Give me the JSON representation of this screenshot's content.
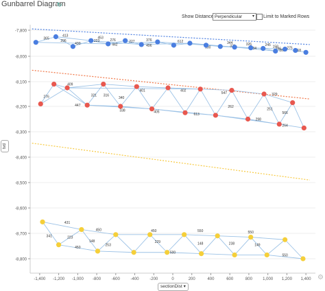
{
  "header": {
    "title": "Gunbarrel Diagram",
    "title_icon": "refresh-icon",
    "show_distances_label": "Show Distances",
    "distance_mode": "Perpendicular",
    "limit_label": "Limit to Marked Rows"
  },
  "axes_buttons": {
    "y": "tvd",
    "x": "sectionDist"
  },
  "chart_data": {
    "type": "scatter",
    "xlabel": "sectionDist",
    "ylabel": "tvd",
    "xlim": [
      -1500,
      1500
    ],
    "ylim": [
      -9850,
      -7750
    ],
    "grid": "horizontal",
    "xticks": [
      -1400,
      -1200,
      -1000,
      -800,
      -600,
      -400,
      -200,
      0,
      200,
      400,
      600,
      800,
      1000,
      1200,
      1400
    ],
    "xtick_labels": [
      "-1,400",
      "-1,200",
      "-1,000",
      "-800",
      "-600",
      "-400",
      "-200",
      "0",
      "200",
      "400",
      "600",
      "800",
      "1,000",
      "1,200",
      "1,400"
    ],
    "yticks": [
      -7800,
      -8000,
      -8100,
      -8200,
      -8300,
      -8400,
      -8500,
      -8600,
      -8700,
      -8800
    ],
    "ytick_labels": [
      "-7,800",
      "-8,000",
      "-8,100",
      "-8,200",
      "-8,300",
      "-8,400",
      "-8,500",
      "-8,600",
      "-8,700",
      "-8,800"
    ],
    "colors": {
      "blue": "#4a7ee0",
      "red": "#e8584f",
      "yellow": "#f5cf3a",
      "line": "#9cc2e6",
      "trend_blue": "#4a7ee0",
      "trend_red": "#f07545",
      "trend_yellow": "#f7c93f"
    },
    "trend_lines": [
      {
        "color": "blue",
        "x": [
          -1480,
          1440
        ],
        "y": [
          -7795,
          -7910
        ]
      },
      {
        "color": "red",
        "x": [
          -1480,
          1440
        ],
        "y": [
          -8055,
          -8170
        ]
      },
      {
        "color": "yellow",
        "x": [
          -1480,
          1440
        ],
        "y": [
          -8345,
          -8490
        ]
      }
    ],
    "series": [
      {
        "color": "blue",
        "x": [
          -1440,
          -1230,
          -1050,
          -860,
          -680,
          -500,
          -330,
          -160,
          10,
          180,
          350,
          500,
          650,
          820,
          950,
          1080,
          1180,
          1290,
          1400
        ],
        "y": [
          -7893,
          -7850,
          -7925,
          -7880,
          -7905,
          -7880,
          -7910,
          -7890,
          -7915,
          -7900,
          -7915,
          -7925,
          -7930,
          -7935,
          -7940,
          -7960,
          -7945,
          -7955,
          -7970
        ],
        "edges": [
          [
            0,
            1
          ],
          [
            1,
            2
          ],
          [
            2,
            3
          ],
          [
            3,
            4
          ],
          [
            4,
            5
          ],
          [
            5,
            6
          ],
          [
            6,
            7
          ],
          [
            7,
            8
          ],
          [
            8,
            9
          ],
          [
            9,
            10
          ],
          [
            10,
            11
          ],
          [
            11,
            12
          ],
          [
            12,
            13
          ],
          [
            13,
            14
          ],
          [
            14,
            15
          ],
          [
            15,
            16
          ],
          [
            16,
            17
          ],
          [
            17,
            18
          ],
          [
            0,
            4
          ],
          [
            4,
            7
          ],
          [
            7,
            10
          ],
          [
            10,
            13
          ],
          [
            13,
            16
          ],
          [
            1,
            3
          ],
          [
            3,
            6
          ],
          [
            6,
            9
          ],
          [
            9,
            12
          ],
          [
            12,
            15
          ]
        ],
        "labels": [
          {
            "text": "365",
            "x": -1330,
            "y": -7870
          },
          {
            "text": "413",
            "x": -1130,
            "y": -7850
          },
          {
            "text": "296",
            "x": -1150,
            "y": -7890
          },
          {
            "text": "430",
            "x": -1000,
            "y": -7910
          },
          {
            "text": "453",
            "x": -760,
            "y": -7865
          },
          {
            "text": "223",
            "x": -800,
            "y": -7890
          },
          {
            "text": "276",
            "x": -630,
            "y": -7885
          },
          {
            "text": "442",
            "x": -610,
            "y": -7918
          },
          {
            "text": "227",
            "x": -430,
            "y": -7895
          },
          {
            "text": "376",
            "x": -250,
            "y": -7885
          },
          {
            "text": "496",
            "x": -250,
            "y": -7925
          },
          {
            "text": "612",
            "x": 80,
            "y": -7895
          },
          {
            "text": "530",
            "x": 370,
            "y": -7940
          },
          {
            "text": "344",
            "x": 600,
            "y": -7905
          },
          {
            "text": "321",
            "x": 630,
            "y": -7930
          },
          {
            "text": "326",
            "x": 800,
            "y": -7915
          },
          {
            "text": "334",
            "x": 850,
            "y": -7948
          },
          {
            "text": "245",
            "x": 1000,
            "y": -7920
          },
          {
            "text": "158",
            "x": 1080,
            "y": -7935
          },
          {
            "text": "246",
            "x": 1110,
            "y": -7950
          },
          {
            "text": "275",
            "x": 1230,
            "y": -7945
          },
          {
            "text": "166",
            "x": 1150,
            "y": -7962
          },
          {
            "text": "118",
            "x": 1320,
            "y": -7962
          }
        ]
      },
      {
        "color": "red",
        "x": [
          -1390,
          -1250,
          -1110,
          -900,
          -730,
          -550,
          -380,
          -220,
          -50,
          130,
          290,
          450,
          620,
          790,
          960,
          1120,
          1260,
          1380
        ],
        "y": [
          -8190,
          -8110,
          -8125,
          -8195,
          -8110,
          -8200,
          -8120,
          -8210,
          -8125,
          -8225,
          -8130,
          -8235,
          -8135,
          -8250,
          -8150,
          -8270,
          -8185,
          -8285
        ],
        "edges": [
          [
            0,
            1
          ],
          [
            1,
            2
          ],
          [
            2,
            3
          ],
          [
            3,
            4
          ],
          [
            4,
            5
          ],
          [
            5,
            6
          ],
          [
            6,
            7
          ],
          [
            7,
            8
          ],
          [
            8,
            9
          ],
          [
            9,
            10
          ],
          [
            10,
            11
          ],
          [
            11,
            12
          ],
          [
            12,
            13
          ],
          [
            13,
            14
          ],
          [
            14,
            15
          ],
          [
            15,
            16
          ],
          [
            16,
            17
          ],
          [
            0,
            2
          ],
          [
            2,
            4
          ],
          [
            4,
            6
          ],
          [
            6,
            8
          ],
          [
            8,
            10
          ],
          [
            10,
            12
          ],
          [
            12,
            14
          ],
          [
            14,
            16
          ],
          [
            1,
            3
          ],
          [
            3,
            5
          ],
          [
            5,
            7
          ],
          [
            7,
            9
          ],
          [
            9,
            11
          ],
          [
            11,
            13
          ],
          [
            13,
            15
          ],
          [
            15,
            17
          ],
          [
            3,
            7
          ],
          [
            7,
            11
          ],
          [
            11,
            15
          ],
          [
            2,
            10
          ]
        ],
        "labels": [
          {
            "text": "409",
            "x": -1080,
            "y": -8115
          },
          {
            "text": "276",
            "x": -1330,
            "y": -8165
          },
          {
            "text": "447",
            "x": -1000,
            "y": -8200
          },
          {
            "text": "321",
            "x": -830,
            "y": -8160
          },
          {
            "text": "316",
            "x": -700,
            "y": -8160
          },
          {
            "text": "338",
            "x": -530,
            "y": -8220
          },
          {
            "text": "340",
            "x": -540,
            "y": -8170
          },
          {
            "text": "401",
            "x": -320,
            "y": -8140
          },
          {
            "text": "405",
            "x": -170,
            "y": -8225
          },
          {
            "text": "402",
            "x": 110,
            "y": -8140
          },
          {
            "text": "547",
            "x": 540,
            "y": -8150
          },
          {
            "text": "613",
            "x": 250,
            "y": -8235
          },
          {
            "text": "262",
            "x": 610,
            "y": -8205
          },
          {
            "text": "329",
            "x": 1070,
            "y": -8155
          },
          {
            "text": "298",
            "x": 900,
            "y": -8255
          },
          {
            "text": "251",
            "x": 1020,
            "y": -8215
          },
          {
            "text": "566",
            "x": 1180,
            "y": -8230
          },
          {
            "text": "264",
            "x": 1180,
            "y": -8280
          }
        ]
      },
      {
        "color": "yellow",
        "x": [
          -1370,
          -1200,
          -960,
          -790,
          -600,
          -410,
          -240,
          -60,
          120,
          300,
          470,
          650,
          820,
          990,
          1180,
          1370
        ],
        "y": [
          -8655,
          -8745,
          -8685,
          -8770,
          -8705,
          -8775,
          -8705,
          -8775,
          -8705,
          -8780,
          -8710,
          -8785,
          -8715,
          -8785,
          -8725,
          -8800
        ],
        "edges": [
          [
            0,
            1
          ],
          [
            1,
            2
          ],
          [
            2,
            3
          ],
          [
            3,
            4
          ],
          [
            4,
            5
          ],
          [
            5,
            6
          ],
          [
            6,
            7
          ],
          [
            7,
            8
          ],
          [
            8,
            9
          ],
          [
            9,
            10
          ],
          [
            10,
            11
          ],
          [
            11,
            12
          ],
          [
            12,
            13
          ],
          [
            13,
            14
          ],
          [
            14,
            15
          ],
          [
            0,
            2
          ],
          [
            2,
            4
          ],
          [
            4,
            6
          ],
          [
            6,
            8
          ],
          [
            8,
            10
          ],
          [
            10,
            12
          ],
          [
            12,
            14
          ],
          [
            1,
            3
          ],
          [
            3,
            5
          ],
          [
            5,
            7
          ],
          [
            7,
            9
          ],
          [
            9,
            11
          ],
          [
            11,
            13
          ],
          [
            13,
            15
          ]
        ],
        "labels": [
          {
            "text": "431",
            "x": -1110,
            "y": -8662
          },
          {
            "text": "341",
            "x": -1300,
            "y": -8715
          },
          {
            "text": "223",
            "x": -1080,
            "y": -8720
          },
          {
            "text": "450",
            "x": -780,
            "y": -8690
          },
          {
            "text": "148",
            "x": -850,
            "y": -8735
          },
          {
            "text": "450",
            "x": -1000,
            "y": -8760
          },
          {
            "text": "253",
            "x": -680,
            "y": -8750
          },
          {
            "text": "450",
            "x": -200,
            "y": -8695
          },
          {
            "text": "229",
            "x": -160,
            "y": -8738
          },
          {
            "text": "500",
            "x": 0,
            "y": -8780
          },
          {
            "text": "550",
            "x": 290,
            "y": -8695
          },
          {
            "text": "550",
            "x": 820,
            "y": -8700
          },
          {
            "text": "148",
            "x": 290,
            "y": -8745
          },
          {
            "text": "238",
            "x": 620,
            "y": -8745
          },
          {
            "text": "149",
            "x": 890,
            "y": -8750
          },
          {
            "text": "550",
            "x": 1180,
            "y": -8790
          }
        ]
      }
    ]
  }
}
